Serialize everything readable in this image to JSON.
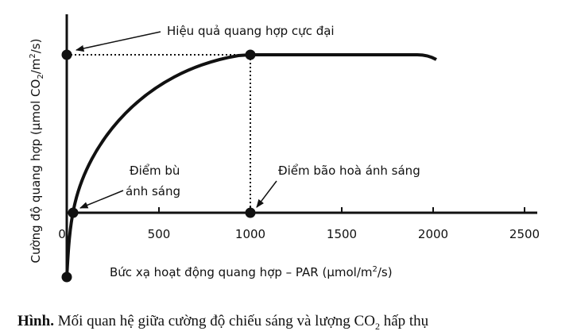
{
  "y_label": {
    "part1": "Cường độ quang hợp (µmol CO",
    "sub": "2",
    "part2": "/m",
    "sup": "2",
    "part3": "/s)"
  },
  "x_label": {
    "part1": "Bức xạ hoạt động quang hợp – PAR (µmol/m",
    "sup": "2",
    "part2": "/s)"
  },
  "x_axis": {
    "ticks": [
      "0",
      "500",
      "1000",
      "1500",
      "2000",
      "2500"
    ]
  },
  "annotations": {
    "max_efficiency": "Hiệu quả quang hợp cực đại",
    "compensation_line1": "Điểm bù",
    "compensation_line2": "ánh sáng",
    "saturation": "Điểm bão hoà ánh sáng"
  },
  "caption": {
    "label": "Hình.",
    "part1": " Mối quan hệ giữa cường độ chiếu sáng và lượng CO",
    "sub": "2",
    "part2": " hấp thụ"
  }
}
